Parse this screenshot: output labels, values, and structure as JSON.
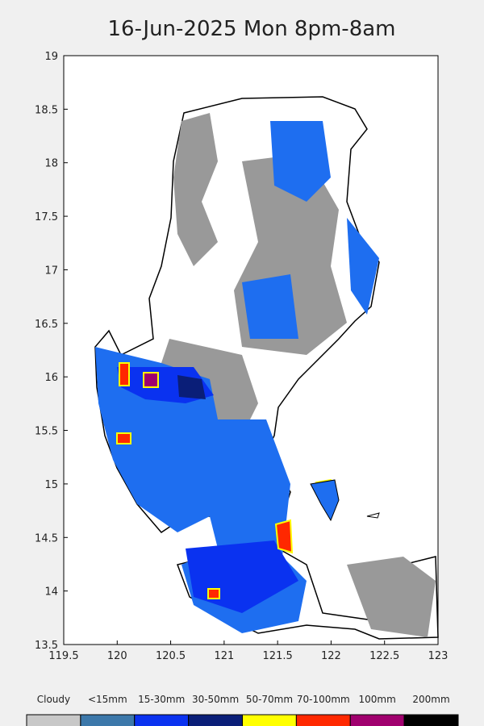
{
  "chart_data": {
    "type": "map",
    "title": "16-Jun-2025 Mon 8pm-8am",
    "xlim": [
      119.5,
      123
    ],
    "ylim": [
      13.5,
      19
    ],
    "xticks": [
      119.5,
      120,
      120.5,
      121,
      121.5,
      122,
      122.5,
      123
    ],
    "yticks": [
      13.5,
      14,
      14.5,
      15,
      15.5,
      16,
      16.5,
      17,
      17.5,
      18,
      18.5,
      19
    ],
    "legend": {
      "labels": [
        "Cloudy",
        "<15mm",
        "15-30mm",
        "30-50mm",
        "50-70mm",
        "70-100mm",
        "100mm",
        "200mm"
      ],
      "colors": [
        "#c8c8c8",
        "#3c78aa",
        "#0a32f0",
        "#0a1e78",
        "#ffff00",
        "#ff2800",
        "#a0006e",
        "#000000"
      ]
    }
  }
}
